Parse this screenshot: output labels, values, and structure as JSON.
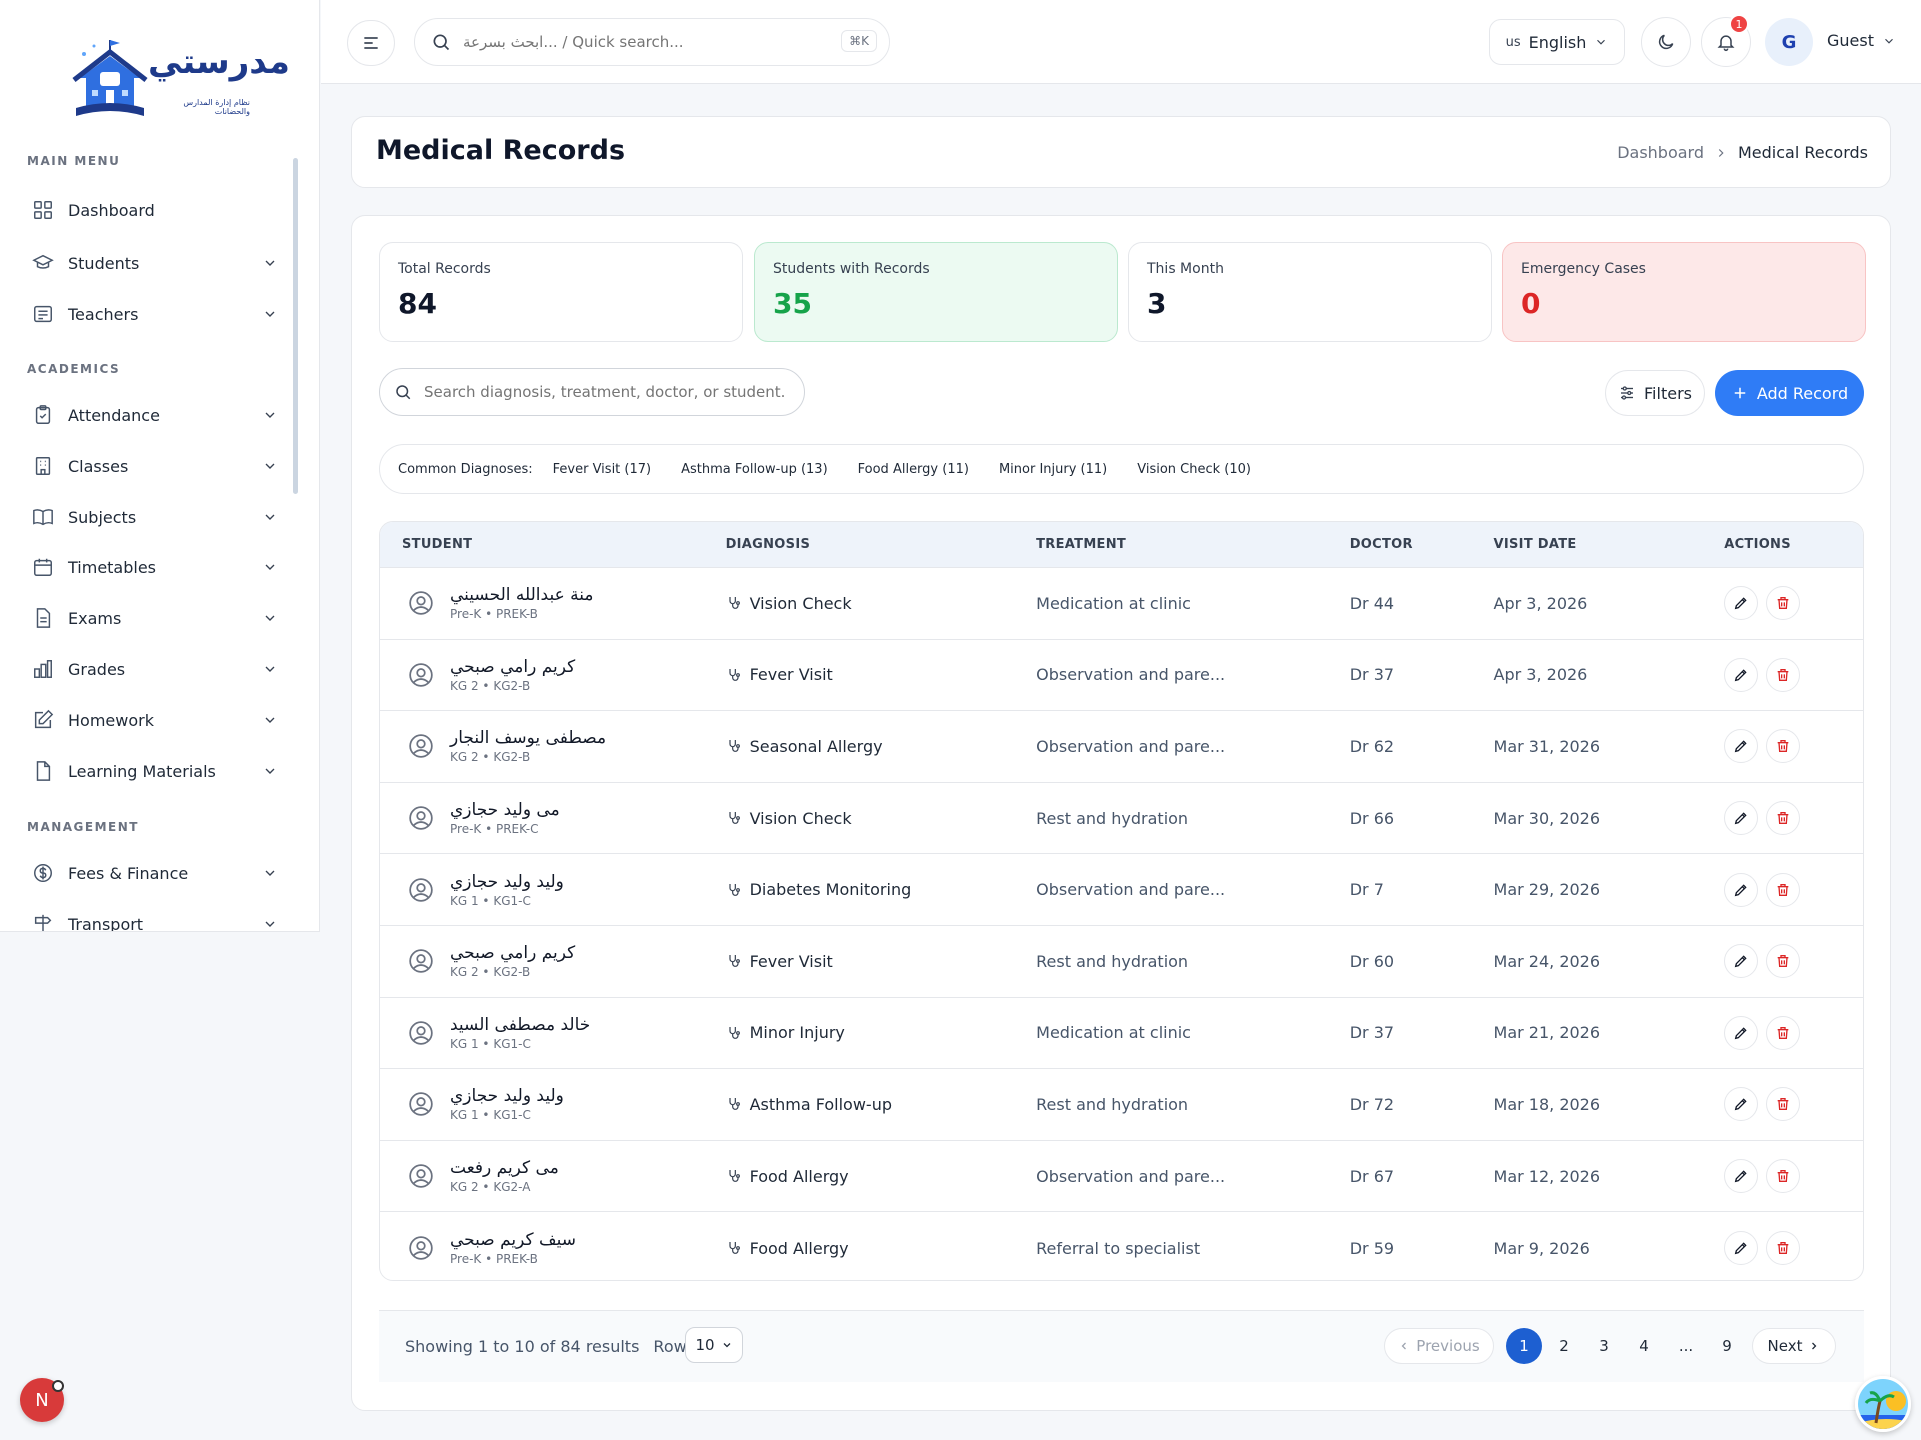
{
  "app": {
    "logo_text": "مدرستي",
    "logo_subtitle": "نظام إدارة المدارس والحضانات"
  },
  "sidebar": {
    "sections": [
      {
        "label": "MAIN MENU"
      },
      {
        "label": "ACADEMICS"
      },
      {
        "label": "MANAGEMENT"
      }
    ],
    "items": [
      {
        "label": "Dashboard",
        "icon": "grid-icon"
      },
      {
        "label": "Students",
        "icon": "graduation-cap-icon"
      },
      {
        "label": "Teachers",
        "icon": "id-card-icon"
      },
      {
        "label": "Attendance",
        "icon": "clipboard-check-icon"
      },
      {
        "label": "Classes",
        "icon": "building-icon"
      },
      {
        "label": "Subjects",
        "icon": "book-open-icon"
      },
      {
        "label": "Timetables",
        "icon": "calendar-icon"
      },
      {
        "label": "Exams",
        "icon": "file-text-icon"
      },
      {
        "label": "Grades",
        "icon": "bar-chart-icon"
      },
      {
        "label": "Homework",
        "icon": "pencil-square-icon"
      },
      {
        "label": "Learning Materials",
        "icon": "file-icon"
      },
      {
        "label": "Fees & Finance",
        "icon": "dollar-circle-icon"
      },
      {
        "label": "Transport",
        "icon": "signpost-icon"
      }
    ]
  },
  "header": {
    "search_placeholder": "ابحث بسرعة... / Quick search...",
    "search_shortcut": "⌘K",
    "language_flag": "us",
    "language": "English",
    "notification_count": "1",
    "avatar_initial": "G",
    "user_name": "Guest"
  },
  "page": {
    "title": "Medical Records",
    "breadcrumb": [
      "Dashboard",
      "Medical Records"
    ]
  },
  "stats": [
    {
      "label": "Total Records",
      "value": "84"
    },
    {
      "label": "Students with Records",
      "value": "35"
    },
    {
      "label": "This Month",
      "value": "3"
    },
    {
      "label": "Emergency Cases",
      "value": "0"
    }
  ],
  "toolbar": {
    "search_placeholder": "Search diagnosis, treatment, doctor, or student...",
    "filters_label": "Filters",
    "add_label": "Add Record"
  },
  "common_diagnoses": {
    "label": "Common Diagnoses:",
    "chips": [
      "Fever Visit (17)",
      "Asthma Follow-up (13)",
      "Food Allergy (11)",
      "Minor Injury (11)",
      "Vision Check (10)"
    ]
  },
  "table": {
    "columns": [
      "STUDENT",
      "DIAGNOSIS",
      "TREATMENT",
      "DOCTOR",
      "VISIT DATE",
      "ACTIONS"
    ],
    "rows": [
      {
        "name": "منة عبدالله الحسيني",
        "sub": "Pre-K • PREK-B",
        "diagnosis": "Vision Check",
        "treatment": "Medication at clinic",
        "doctor": "Dr 44",
        "date": "Apr 3, 2026"
      },
      {
        "name": "كريم رامي صبحي",
        "sub": "KG 2 • KG2-B",
        "diagnosis": "Fever Visit",
        "treatment": "Observation and pare...",
        "doctor": "Dr 37",
        "date": "Apr 3, 2026"
      },
      {
        "name": "مصطفى يوسف النجار",
        "sub": "KG 2 • KG2-B",
        "diagnosis": "Seasonal Allergy",
        "treatment": "Observation and pare...",
        "doctor": "Dr 62",
        "date": "Mar 31, 2026"
      },
      {
        "name": "مى وليد حجازي",
        "sub": "Pre-K • PREK-C",
        "diagnosis": "Vision Check",
        "treatment": "Rest and hydration",
        "doctor": "Dr 66",
        "date": "Mar 30, 2026"
      },
      {
        "name": "وليد وليد حجازي",
        "sub": "KG 1 • KG1-C",
        "diagnosis": "Diabetes Monitoring",
        "treatment": "Observation and pare...",
        "doctor": "Dr 7",
        "date": "Mar 29, 2026"
      },
      {
        "name": "كريم رامي صبحي",
        "sub": "KG 2 • KG2-B",
        "diagnosis": "Fever Visit",
        "treatment": "Rest and hydration",
        "doctor": "Dr 60",
        "date": "Mar 24, 2026"
      },
      {
        "name": "خالد مصطفى السيد",
        "sub": "KG 1 • KG1-C",
        "diagnosis": "Minor Injury",
        "treatment": "Medication at clinic",
        "doctor": "Dr 37",
        "date": "Mar 21, 2026"
      },
      {
        "name": "وليد وليد حجازي",
        "sub": "KG 1 • KG1-C",
        "diagnosis": "Asthma Follow-up",
        "treatment": "Rest and hydration",
        "doctor": "Dr 72",
        "date": "Mar 18, 2026"
      },
      {
        "name": "مى كريم رفعت",
        "sub": "KG 2 • KG2-A",
        "diagnosis": "Food Allergy",
        "treatment": "Observation and pare...",
        "doctor": "Dr 67",
        "date": "Mar 12, 2026"
      },
      {
        "name": "سيف كريم صبحي",
        "sub": "Pre-K • PREK-B",
        "diagnosis": "Food Allergy",
        "treatment": "Referral to specialist",
        "doctor": "Dr 59",
        "date": "Mar 9, 2026"
      }
    ]
  },
  "pagination": {
    "showing": "Showing 1 to 10 of 84 results",
    "rows_label": "Rows",
    "rows_value": "10",
    "previous": "Previous",
    "next": "Next",
    "pages": [
      "1",
      "2",
      "3",
      "4",
      "...",
      "9"
    ],
    "current": "1"
  },
  "floating": {
    "n_badge": "N"
  },
  "colors": {
    "accent": "#2f7cf6",
    "success": "#16a34a",
    "danger": "#dc2626"
  }
}
